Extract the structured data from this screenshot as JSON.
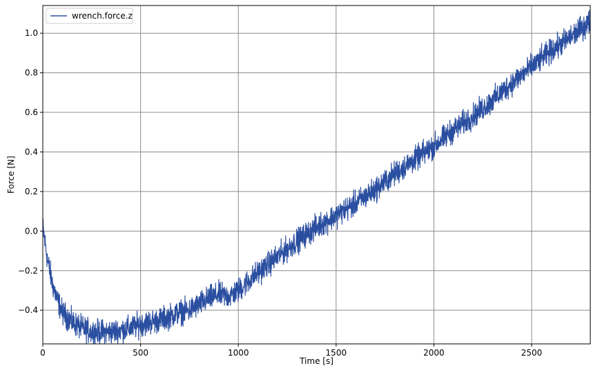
{
  "chart_data": {
    "type": "line",
    "xlabel": "Time [s]",
    "ylabel": "Force [N]",
    "xlim": [
      0,
      2800
    ],
    "ylim": [
      -0.57,
      1.14
    ],
    "grid": true,
    "legend_position": "top-left",
    "x_ticks": [
      0,
      500,
      1000,
      1500,
      2000,
      2500
    ],
    "x_tick_labels": [
      "0",
      "500",
      "1000",
      "1500",
      "2000",
      "2500"
    ],
    "y_ticks": [
      -0.4,
      -0.2,
      0.0,
      0.2,
      0.4,
      0.6,
      0.8,
      1.0
    ],
    "y_tick_labels": [
      "−0.4",
      "−0.2",
      "0.0",
      "0.2",
      "0.4",
      "0.6",
      "0.8",
      "1.0"
    ],
    "series": [
      {
        "name": "wrench.force.z",
        "color": "#2a4ea0",
        "noise_amplitude": 0.03,
        "x": [
          0,
          10,
          25,
          50,
          75,
          100,
          150,
          200,
          250,
          300,
          350,
          400,
          450,
          500,
          550,
          600,
          650,
          700,
          750,
          800,
          850,
          900,
          950,
          1000,
          1100,
          1200,
          1300,
          1400,
          1500,
          1600,
          1700,
          1800,
          1900,
          2000,
          2100,
          2200,
          2300,
          2400,
          2500,
          2600,
          2700,
          2800
        ],
        "values": [
          0.02,
          -0.05,
          -0.15,
          -0.27,
          -0.35,
          -0.41,
          -0.46,
          -0.49,
          -0.51,
          -0.51,
          -0.51,
          -0.5,
          -0.49,
          -0.47,
          -0.46,
          -0.45,
          -0.43,
          -0.41,
          -0.4,
          -0.37,
          -0.34,
          -0.32,
          -0.33,
          -0.3,
          -0.21,
          -0.13,
          -0.05,
          0.02,
          0.08,
          0.14,
          0.21,
          0.29,
          0.36,
          0.43,
          0.51,
          0.58,
          0.66,
          0.75,
          0.83,
          0.91,
          0.98,
          1.06
        ]
      }
    ]
  }
}
